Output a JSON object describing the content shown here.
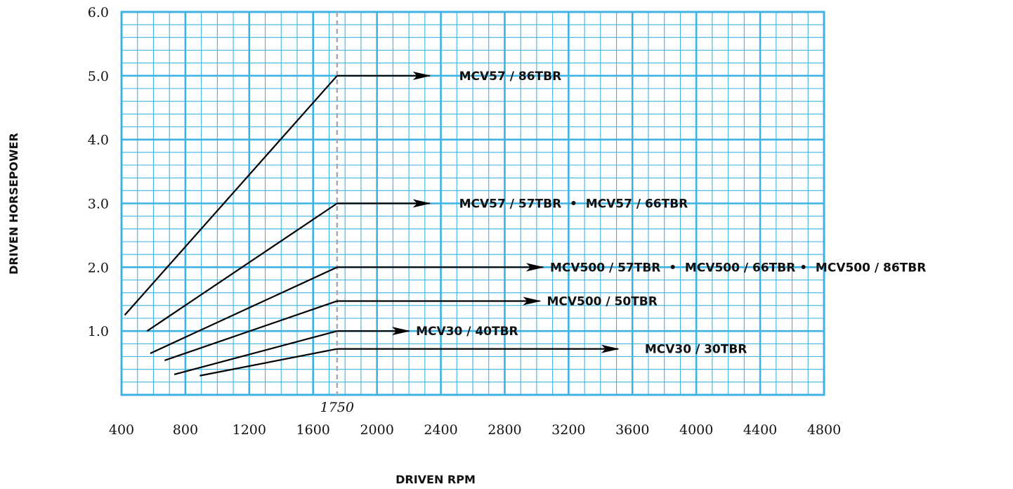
{
  "colors": {
    "grid": "#3fb2e4",
    "line": "#000000",
    "reference": "#a9a9a9"
  },
  "chart_data": {
    "type": "line",
    "xlabel": "DRIVEN RPM",
    "ylabel": "DRIVEN HORSEPOWER",
    "xlim": [
      400,
      4800
    ],
    "ylim": [
      0,
      6
    ],
    "x_ticks": [
      400,
      800,
      1200,
      1600,
      2000,
      2400,
      2800,
      3200,
      3600,
      4000,
      4400,
      4800
    ],
    "y_ticks": [
      {
        "value": 1,
        "label": "1.0"
      },
      {
        "value": 2,
        "label": "2.0"
      },
      {
        "value": 3,
        "label": "3.0"
      },
      {
        "value": 4,
        "label": "4.0"
      },
      {
        "value": 5,
        "label": "5.0"
      },
      {
        "value": 6,
        "label": "6.0"
      }
    ],
    "grid": true,
    "reference_line": {
      "x": 1750,
      "label": "1750"
    },
    "series": [
      {
        "name": "MCV57 / 86TBR",
        "points": [
          [
            420,
            1.25
          ],
          [
            1750,
            5.0
          ]
        ],
        "arrow_to_x": 2330
      },
      {
        "name": "MCV57 / 57TBR  •  MCV57 / 66TBR",
        "points": [
          [
            560,
            1.0
          ],
          [
            1750,
            3.0
          ]
        ],
        "arrow_to_x": 2330
      },
      {
        "name": "MCV500 / 57TBR  •  MCV500 / 66TBR •  MCV500 / 86TBR",
        "points": [
          [
            580,
            0.65
          ],
          [
            1750,
            2.0
          ]
        ],
        "arrow_to_x": 3040
      },
      {
        "name": "MCV500 / 50TBR",
        "points": [
          [
            670,
            0.54
          ],
          [
            1750,
            1.47
          ]
        ],
        "arrow_to_x": 3020
      },
      {
        "name": "MCV30 / 40TBR",
        "points": [
          [
            730,
            0.32
          ],
          [
            1750,
            1.0
          ]
        ],
        "arrow_to_x": 2200
      },
      {
        "name": "MCV30 / 30TBR",
        "points": [
          [
            890,
            0.3
          ],
          [
            1750,
            0.72
          ]
        ],
        "arrow_to_x": 3510
      }
    ]
  }
}
